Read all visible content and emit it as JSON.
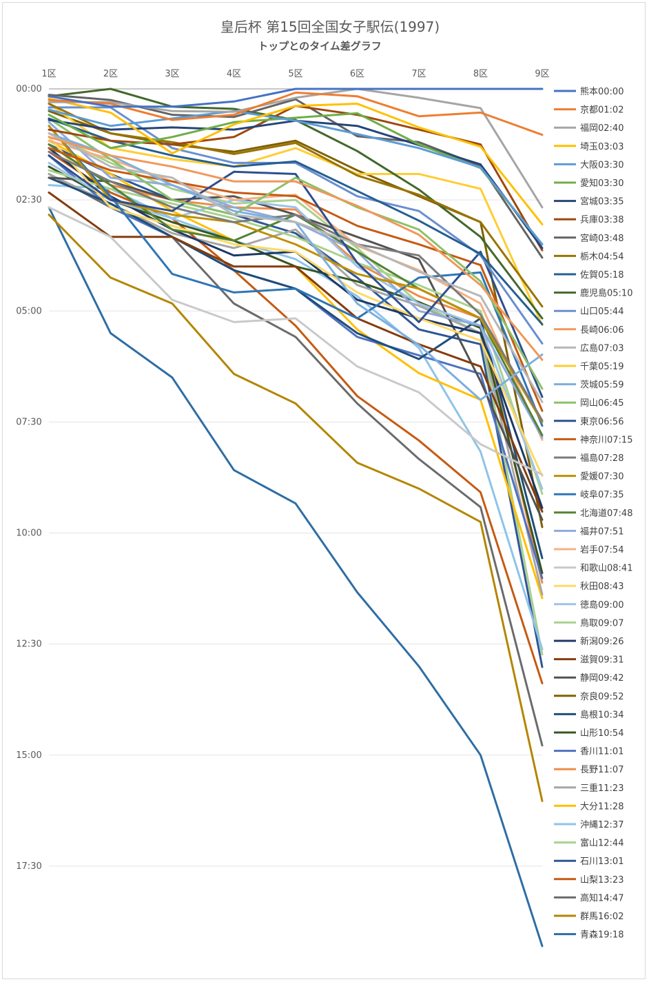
{
  "chart_data": {
    "type": "line",
    "title": "皇后杯 第15回全国女子駅伝(1997)",
    "subtitle": "トップとのタイム差グラフ",
    "categories": [
      "1区",
      "2区",
      "3区",
      "4区",
      "5区",
      "6区",
      "7区",
      "8区",
      "9区"
    ],
    "y_tick_labels": [
      "00:00",
      "02:30",
      "05:00",
      "07:30",
      "10:00",
      "12:30",
      "15:00",
      "17:30"
    ],
    "ylim_seconds": [
      0,
      1170
    ],
    "y_reversed": true,
    "legend_position": "right",
    "series": [
      {
        "name": "熊本00:00",
        "color": "#4472c4",
        "values": [
          10,
          24,
          24,
          17,
          0,
          0,
          0,
          0,
          0
        ]
      },
      {
        "name": "京都01:02",
        "color": "#ed7d31",
        "values": [
          15,
          20,
          42,
          35,
          5,
          10,
          37,
          32,
          62
        ]
      },
      {
        "name": "福岡02:40",
        "color": "#a5a5a5",
        "values": [
          18,
          18,
          30,
          31,
          12,
          0,
          12,
          26,
          160
        ]
      },
      {
        "name": "埼玉03:03",
        "color": "#ffc000",
        "values": [
          13,
          32,
          87,
          48,
          23,
          20,
          52,
          78,
          183
        ]
      },
      {
        "name": "大阪03:30",
        "color": "#5b9bd5",
        "values": [
          28,
          50,
          40,
          30,
          43,
          61,
          80,
          106,
          210
        ]
      },
      {
        "name": "愛知03:30",
        "color": "#70ad47",
        "values": [
          35,
          80,
          65,
          45,
          39,
          33,
          75,
          107,
          210
        ]
      },
      {
        "name": "宮城03:35",
        "color": "#264478",
        "values": [
          42,
          55,
          52,
          55,
          43,
          50,
          76,
          102,
          215
        ]
      },
      {
        "name": "兵庫03:38",
        "color": "#9e480e",
        "values": [
          55,
          70,
          75,
          65,
          23,
          35,
          55,
          75,
          218
        ]
      },
      {
        "name": "宮崎03:48",
        "color": "#636363",
        "values": [
          8,
          15,
          35,
          38,
          14,
          64,
          72,
          104,
          228
        ]
      },
      {
        "name": "栃木04:54",
        "color": "#997300",
        "values": [
          20,
          60,
          72,
          88,
          73,
          117,
          143,
          180,
          294
        ]
      },
      {
        "name": "佐賀05:18",
        "color": "#255e91",
        "values": [
          40,
          70,
          90,
          105,
          98,
          138,
          178,
          223,
          318
        ]
      },
      {
        "name": "鹿児島05:10",
        "color": "#43682b",
        "values": [
          10,
          0,
          24,
          27,
          42,
          84,
          136,
          200,
          310
        ]
      },
      {
        "name": "山口05:44",
        "color": "#698ed0",
        "values": [
          25,
          25,
          80,
          100,
          100,
          145,
          165,
          225,
          344
        ]
      },
      {
        "name": "長崎06:06",
        "color": "#f1975a",
        "values": [
          65,
          90,
          105,
          125,
          125,
          158,
          197,
          265,
          366
        ]
      },
      {
        "name": "広島07:03",
        "color": "#b7b7b7",
        "values": [
          60,
          105,
          120,
          170,
          180,
          210,
          247,
          280,
          423
        ]
      },
      {
        "name": "千葉05:19",
        "color": "#ffcd33",
        "values": [
          20,
          80,
          95,
          105,
          80,
          115,
          115,
          135,
          319
        ]
      },
      {
        "name": "茨城05:59",
        "color": "#7cafdd",
        "values": [
          60,
          90,
          130,
          165,
          180,
          290,
          346,
          420,
          359
        ]
      },
      {
        "name": "岡山06:45",
        "color": "#8cc168",
        "values": [
          40,
          95,
          150,
          170,
          120,
          160,
          190,
          260,
          405
        ]
      },
      {
        "name": "東京06:56",
        "color": "#2e4f8f",
        "values": [
          90,
          150,
          165,
          112,
          115,
          235,
          315,
          220,
          416
        ]
      },
      {
        "name": "神奈川07:15",
        "color": "#c55a11",
        "values": [
          80,
          110,
          125,
          140,
          145,
          185,
          210,
          238,
          435
        ]
      },
      {
        "name": "福島07:28",
        "color": "#7b7b7b",
        "values": [
          85,
          125,
          160,
          180,
          170,
          210,
          225,
          305,
          448
        ]
      },
      {
        "name": "愛媛07:30",
        "color": "#bf9000",
        "values": [
          50,
          150,
          170,
          180,
          210,
          250,
          270,
          310,
          450
        ]
      },
      {
        "name": "岐阜07:35",
        "color": "#2e75b6",
        "values": [
          50,
          145,
          250,
          275,
          270,
          310,
          255,
          248,
          455
        ]
      },
      {
        "name": "北海道07:48",
        "color": "#548235",
        "values": [
          75,
          130,
          190,
          205,
          170,
          220,
          270,
          310,
          468
        ]
      },
      {
        "name": "福井07:51",
        "color": "#8faadc",
        "values": [
          45,
          120,
          130,
          160,
          180,
          220,
          300,
          320,
          471
        ]
      },
      {
        "name": "岩手07:54",
        "color": "#f4b183",
        "values": [
          70,
          95,
          125,
          150,
          143,
          212,
          245,
          290,
          474
        ]
      },
      {
        "name": "和歌山08:41",
        "color": "#c9c9c9",
        "values": [
          160,
          200,
          285,
          315,
          310,
          375,
          410,
          480,
          521
        ]
      },
      {
        "name": "秋田08:43",
        "color": "#ffd966",
        "values": [
          65,
          160,
          185,
          210,
          220,
          275,
          310,
          340,
          523
        ]
      },
      {
        "name": "徳島09:00",
        "color": "#9dc3e6",
        "values": [
          100,
          150,
          175,
          150,
          160,
          240,
          290,
          320,
          540
        ]
      },
      {
        "name": "鳥取09:07",
        "color": "#a9d18e",
        "values": [
          110,
          135,
          155,
          175,
          200,
          235,
          265,
          300,
          547
        ]
      },
      {
        "name": "新潟09:26",
        "color": "#1f3864",
        "values": [
          80,
          145,
          190,
          225,
          220,
          285,
          310,
          330,
          566
        ]
      },
      {
        "name": "滋賀09:31",
        "color": "#843c0c",
        "values": [
          140,
          200,
          200,
          240,
          240,
          310,
          345,
          375,
          571
        ]
      },
      {
        "name": "静岡09:42",
        "color": "#525252",
        "values": [
          120,
          125,
          150,
          145,
          170,
          200,
          230,
          395,
          582
        ]
      },
      {
        "name": "奈良09:52",
        "color": "#806000",
        "values": [
          30,
          60,
          75,
          85,
          70,
          110,
          145,
          180,
          592
        ]
      },
      {
        "name": "島根10:34",
        "color": "#1f4e79",
        "values": [
          120,
          155,
          200,
          245,
          270,
          330,
          365,
          310,
          634
        ]
      },
      {
        "name": "山形10:54",
        "color": "#375623",
        "values": [
          105,
          150,
          180,
          205,
          240,
          260,
          288,
          323,
          654
        ]
      },
      {
        "name": "香川11:01",
        "color": "#4f71be",
        "values": [
          90,
          160,
          200,
          245,
          270,
          335,
          360,
          385,
          661
        ]
      },
      {
        "name": "長野11:07",
        "color": "#f08c4a",
        "values": [
          75,
          130,
          150,
          160,
          163,
          235,
          280,
          310,
          667
        ]
      },
      {
        "name": "三重11:23",
        "color": "#a6a6a6",
        "values": [
          115,
          155,
          195,
          215,
          190,
          265,
          293,
          330,
          683
        ]
      },
      {
        "name": "大分11:28",
        "color": "#ffc000",
        "values": [
          70,
          115,
          165,
          205,
          240,
          325,
          384,
          420,
          688
        ]
      },
      {
        "name": "沖縄12:37",
        "color": "#8ec3e8",
        "values": [
          130,
          135,
          175,
          205,
          230,
          280,
          350,
          490,
          757
        ]
      },
      {
        "name": "富山12:44",
        "color": "#a9d18e",
        "values": [
          60,
          100,
          135,
          155,
          150,
          215,
          290,
          330,
          764
        ]
      },
      {
        "name": "石川13:01",
        "color": "#2f5597",
        "values": [
          75,
          115,
          150,
          170,
          195,
          255,
          325,
          345,
          781
        ]
      },
      {
        "name": "山梨13:23",
        "color": "#c55a11",
        "values": [
          85,
          140,
          175,
          245,
          320,
          415,
          475,
          545,
          803
        ]
      },
      {
        "name": "高知14:47",
        "color": "#6b6b6b",
        "values": [
          115,
          160,
          200,
          290,
          335,
          425,
          500,
          565,
          887
        ]
      },
      {
        "name": "群馬16:02",
        "color": "#b38600",
        "values": [
          170,
          255,
          290,
          385,
          425,
          505,
          540,
          585,
          962
        ]
      },
      {
        "name": "青森19:18",
        "color": "#2e6da4",
        "values": [
          160,
          330,
          390,
          515,
          560,
          680,
          780,
          900,
          1158
        ]
      }
    ]
  }
}
